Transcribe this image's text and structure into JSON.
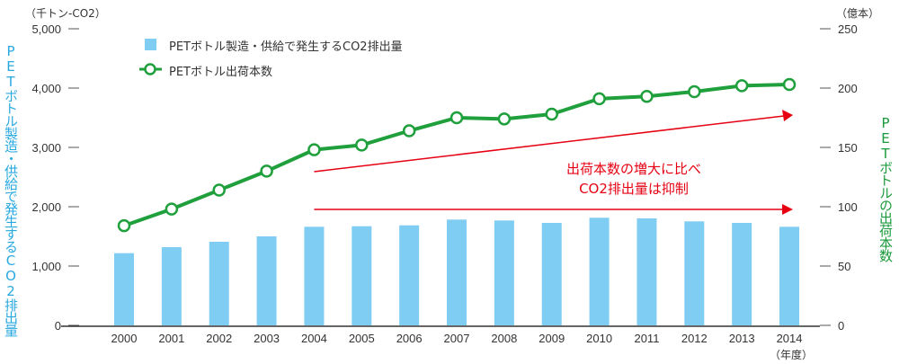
{
  "chart_data": {
    "type": "bar+line",
    "categories": [
      "2000",
      "2001",
      "2002",
      "2003",
      "2004",
      "2005",
      "2006",
      "2007",
      "2008",
      "2009",
      "2010",
      "2011",
      "2012",
      "2013",
      "2014"
    ],
    "series": [
      {
        "name": "PETボトル製造・供給で発生するCO2排出量",
        "type": "bar",
        "axis": "left",
        "color": "#7fcdf3",
        "values": [
          1217,
          1318,
          1409,
          1500,
          1662,
          1671,
          1686,
          1783,
          1768,
          1727,
          1814,
          1803,
          1753,
          1727,
          1662
        ]
      },
      {
        "name": "PETボトル出荷本数",
        "type": "line",
        "axis": "right",
        "color": "#1fa03c",
        "values": [
          84,
          98,
          114,
          130,
          148,
          152,
          164,
          175,
          174,
          178,
          191,
          193,
          197,
          202,
          203
        ]
      }
    ],
    "left_axis": {
      "unit": "（千トン-CO2）",
      "title": "PETボトル製造・供給で発生するCO2排出量",
      "range": [
        0,
        5000
      ],
      "ticks": [
        "0",
        "1,000",
        "2,000",
        "3,000",
        "4,000",
        "5,000"
      ]
    },
    "right_axis": {
      "unit": "（億本）",
      "title": "PETボトルの出荷本数",
      "range": [
        0,
        250
      ],
      "ticks": [
        "0",
        "50",
        "100",
        "150",
        "200",
        "250"
      ]
    },
    "xlabel": "（年度）",
    "annotation": {
      "line1": "出荷本数の増大に比べ",
      "line2": "CO2排出量は抑制",
      "color": "#e60012"
    },
    "legend_placement": "top-left"
  }
}
